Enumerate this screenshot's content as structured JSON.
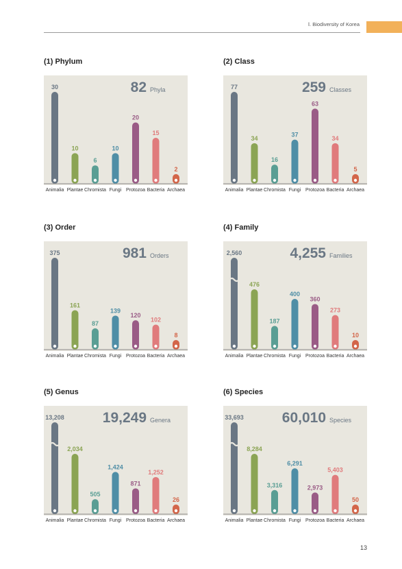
{
  "header": {
    "text": "Ⅰ. Biodiversity of Korea"
  },
  "page_number": "13",
  "colors": {
    "panel_bg": "#e9e7df",
    "Animalia": "#6a7784",
    "Plantae": "#8ba454",
    "Chromista": "#5a9e94",
    "Fungi": "#4f8ea6",
    "Protozoa": "#9a5c86",
    "Bacteria": "#e07b7c",
    "Archaea": "#d3664a"
  },
  "chart_data": [
    {
      "type": "bar",
      "title": "(1) Phylum",
      "total": "82",
      "unit": "Phyla",
      "categories": [
        "Animalia",
        "Plantae",
        "Chromista",
        "Fungi",
        "Protozoa",
        "Bacteria",
        "Archaea"
      ],
      "values": [
        30,
        10,
        6,
        10,
        20,
        15,
        2
      ],
      "labels": [
        "30",
        "10",
        "6",
        "10",
        "20",
        "15",
        "2"
      ],
      "ylim": [
        0,
        30
      ],
      "axis_break": false
    },
    {
      "type": "bar",
      "title": "(2) Class",
      "total": "259",
      "unit": "Classes",
      "categories": [
        "Animalia",
        "Plantae",
        "Chromista",
        "Fungi",
        "Protozoa",
        "Bacteria",
        "Archaea"
      ],
      "values": [
        77,
        34,
        16,
        37,
        63,
        34,
        5
      ],
      "labels": [
        "77",
        "34",
        "16",
        "37",
        "63",
        "34",
        "5"
      ],
      "ylim": [
        0,
        77
      ],
      "axis_break": false
    },
    {
      "type": "bar",
      "title": "(3) Order",
      "total": "981",
      "unit": "Orders",
      "categories": [
        "Animalia",
        "Plantae",
        "Chromista",
        "Fungi",
        "Protozoa",
        "Bacteria",
        "Archaea"
      ],
      "values": [
        375,
        161,
        87,
        139,
        120,
        102,
        8
      ],
      "labels": [
        "375",
        "161",
        "87",
        "139",
        "120",
        "102",
        "8"
      ],
      "ylim": [
        0,
        375
      ],
      "axis_break": false
    },
    {
      "type": "bar",
      "title": "(4) Family",
      "total": "4,255",
      "unit": "Families",
      "categories": [
        "Animalia",
        "Plantae",
        "Chromista",
        "Fungi",
        "Protozoa",
        "Bacteria",
        "Archaea"
      ],
      "values": [
        2560,
        476,
        187,
        400,
        360,
        273,
        10
      ],
      "labels": [
        "2,560",
        "476",
        "187",
        "400",
        "360",
        "273",
        "10"
      ],
      "ylim": [
        0,
        2560
      ],
      "axis_break": true
    },
    {
      "type": "bar",
      "title": "(5) Genus",
      "total": "19,249",
      "unit": "Genera",
      "categories": [
        "Animalia",
        "Plantae",
        "Chromista",
        "Fungi",
        "Protozoa",
        "Bacteria",
        "Archaea"
      ],
      "values": [
        13208,
        2034,
        505,
        1424,
        871,
        1252,
        26
      ],
      "labels": [
        "13,208",
        "2,034",
        "505",
        "1,424",
        "871",
        "1,252",
        "26"
      ],
      "ylim": [
        0,
        13208
      ],
      "axis_break": true
    },
    {
      "type": "bar",
      "title": "(6) Species",
      "total": "60,010",
      "unit": "Species",
      "categories": [
        "Animalia",
        "Plantae",
        "Chromista",
        "Fungi",
        "Protozoa",
        "Bacteria",
        "Archaea"
      ],
      "values": [
        33693,
        8284,
        3316,
        6291,
        2973,
        5403,
        50
      ],
      "labels": [
        "33,693",
        "8,284",
        "3,316",
        "6,291",
        "2,973",
        "5,403",
        "50"
      ],
      "ylim": [
        0,
        33693
      ],
      "axis_break": true
    }
  ]
}
